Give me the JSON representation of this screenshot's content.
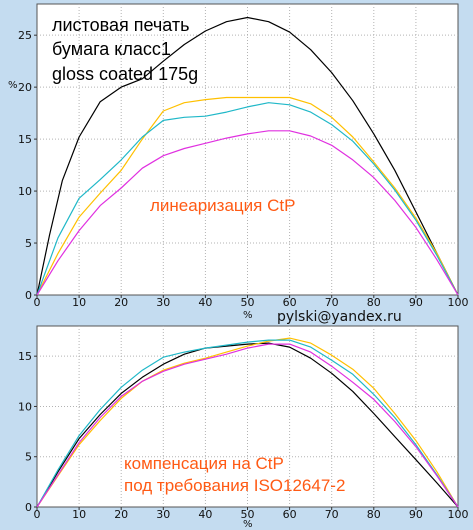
{
  "credit": "pylski@yandex.ru",
  "chart_data": [
    {
      "type": "line",
      "xlabel": "%",
      "ylabel": "%",
      "xlim": [
        0,
        100
      ],
      "ylim": [
        0,
        28
      ],
      "xticks": [
        0,
        10,
        20,
        30,
        40,
        50,
        60,
        70,
        80,
        90,
        100
      ],
      "yticks": [
        0,
        5,
        10,
        15,
        20,
        25
      ],
      "grid": true,
      "annotations": [
        "листовая печать",
        "бумага класс1",
        "gloss coated 175g",
        "линеаризация CtP"
      ],
      "series": [
        {
          "color": "#000000",
          "x": [
            0,
            3,
            6,
            10,
            15,
            20,
            25,
            30,
            35,
            40,
            45,
            50,
            55,
            60,
            65,
            70,
            75,
            80,
            85,
            90,
            95,
            100
          ],
          "y": [
            0,
            5.8,
            11,
            15.2,
            18.6,
            20,
            20.8,
            22.5,
            24.1,
            25.4,
            26.3,
            26.7,
            26.3,
            25.3,
            23.6,
            21.4,
            18.7,
            15.5,
            12,
            8,
            4,
            0
          ]
        },
        {
          "color": "#ffc000",
          "x": [
            0,
            5,
            10,
            15,
            20,
            25,
            30,
            35,
            40,
            45,
            50,
            55,
            60,
            65,
            70,
            75,
            80,
            85,
            90,
            95,
            100
          ],
          "y": [
            0,
            4,
            7.5,
            9.8,
            12,
            15,
            17.7,
            18.5,
            18.8,
            19,
            19,
            19,
            19,
            18.4,
            17.1,
            15.2,
            12.8,
            10.3,
            7.4,
            4,
            0
          ]
        },
        {
          "color": "#20b8c8",
          "x": [
            0,
            5,
            10,
            15,
            20,
            25,
            30,
            35,
            40,
            45,
            50,
            55,
            60,
            65,
            70,
            75,
            80,
            85,
            90,
            95,
            100
          ],
          "y": [
            0,
            5.5,
            9.3,
            11.1,
            13,
            15.2,
            16.8,
            17.1,
            17.2,
            17.6,
            18.1,
            18.5,
            18.3,
            17.6,
            16.4,
            14.8,
            12.6,
            10.1,
            7.2,
            3.8,
            0
          ]
        },
        {
          "color": "#e030e0",
          "x": [
            0,
            5,
            10,
            15,
            20,
            25,
            30,
            35,
            40,
            45,
            50,
            55,
            60,
            65,
            70,
            75,
            80,
            85,
            90,
            95,
            100
          ],
          "y": [
            0,
            3.3,
            6.2,
            8.6,
            10.3,
            12.2,
            13.4,
            14.1,
            14.6,
            15.1,
            15.5,
            15.8,
            15.8,
            15.3,
            14.4,
            13,
            11.3,
            9.1,
            6.5,
            3.4,
            0
          ]
        }
      ]
    },
    {
      "type": "line",
      "xlabel": "%",
      "xlim": [
        0,
        100
      ],
      "ylim": [
        0,
        18
      ],
      "xticks": [
        0,
        10,
        20,
        30,
        40,
        50,
        60,
        70,
        80,
        90,
        100
      ],
      "yticks": [
        0,
        5,
        10,
        15
      ],
      "grid": true,
      "annotations": [
        "компенсация на CtP",
        "под требования ISO12647-2"
      ],
      "series": [
        {
          "color": "#000000",
          "x": [
            0,
            5,
            10,
            15,
            20,
            25,
            30,
            35,
            40,
            45,
            50,
            55,
            60,
            65,
            70,
            75,
            80,
            85,
            90,
            95,
            100
          ],
          "y": [
            0,
            3.5,
            6.8,
            9.2,
            11.3,
            12.9,
            14.2,
            15.2,
            15.8,
            16,
            16.2,
            16.3,
            15.9,
            14.8,
            13.3,
            11.5,
            9.3,
            7,
            4.7,
            2.4,
            0
          ]
        },
        {
          "color": "#ffc000",
          "x": [
            0,
            5,
            10,
            15,
            20,
            25,
            30,
            35,
            40,
            45,
            50,
            55,
            60,
            65,
            70,
            75,
            80,
            85,
            90,
            95,
            100
          ],
          "y": [
            0,
            3.1,
            6.2,
            8.6,
            10.8,
            12.5,
            13.6,
            14.3,
            14.8,
            15.4,
            16,
            16.5,
            16.8,
            16.3,
            15.1,
            13.7,
            11.8,
            9.3,
            6.6,
            3.5,
            0
          ]
        },
        {
          "color": "#20b8c8",
          "x": [
            0,
            5,
            10,
            15,
            20,
            25,
            30,
            35,
            40,
            45,
            50,
            55,
            60,
            65,
            70,
            75,
            80,
            85,
            90,
            95,
            100
          ],
          "y": [
            0,
            3.7,
            7.1,
            9.7,
            11.9,
            13.6,
            14.9,
            15.4,
            15.8,
            16.1,
            16.4,
            16.6,
            16.6,
            15.9,
            14.6,
            13.2,
            11.2,
            8.9,
            6.2,
            3.2,
            0
          ]
        },
        {
          "color": "#e030e0",
          "x": [
            0,
            5,
            10,
            15,
            20,
            25,
            30,
            35,
            40,
            45,
            50,
            55,
            60,
            65,
            70,
            75,
            80,
            85,
            90,
            95,
            100
          ],
          "y": [
            0,
            3.2,
            6.4,
            8.9,
            11,
            12.5,
            13.5,
            14.2,
            14.7,
            15.2,
            15.8,
            16.2,
            16.2,
            15.4,
            14,
            12.4,
            10.7,
            8.5,
            6,
            3.1,
            0
          ]
        }
      ]
    }
  ]
}
